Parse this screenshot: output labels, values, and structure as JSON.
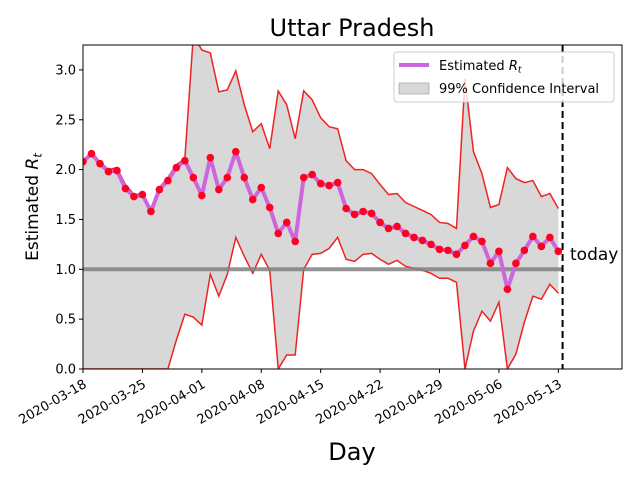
{
  "chart_data": {
    "type": "line",
    "title": "Uttar Pradesh",
    "xlabel": "Day",
    "ylabel": "Estimated $R_t$",
    "ylim": [
      0,
      3.25
    ],
    "x_tick_labels": [
      "2020-03-18",
      "2020-03-25",
      "2020-04-01",
      "2020-04-08",
      "2020-04-15",
      "2020-04-22",
      "2020-04-29",
      "2020-05-06",
      "2020-05-13"
    ],
    "y_ticks": [
      0.0,
      0.5,
      1.0,
      1.5,
      2.0,
      2.5,
      3.0
    ],
    "y_tick_labels": [
      "0.0",
      "0.5",
      "1.0",
      "1.5",
      "2.0",
      "2.5",
      "3.0"
    ],
    "reference_line": {
      "y": 1.0,
      "color": "#808080"
    },
    "today_label": "today",
    "today_day_index": 56.5,
    "legend": {
      "placement": "top-right",
      "estimate_label": "Estimated $R_t$",
      "ci_label": "99% Confidence Interval"
    },
    "colors": {
      "estimate_line": "#cc66dd",
      "points": "#ff0022",
      "ci_fill": "#d8d8d8",
      "ci_edge": "#ee2222",
      "today_line": "#000000"
    },
    "series": [
      {
        "name": "Estimated $R_t$",
        "day_index": [
          0,
          1,
          2,
          3,
          4,
          5,
          6,
          7,
          8,
          9,
          10,
          11,
          12,
          13,
          14,
          15,
          16,
          17,
          18,
          19,
          20,
          21,
          22,
          23,
          24,
          25,
          26,
          27,
          28,
          29,
          30,
          31,
          32,
          33,
          34,
          35,
          36,
          37,
          38,
          39,
          40,
          41,
          42,
          43,
          44,
          45,
          46,
          47,
          48,
          49,
          50,
          51,
          52,
          53,
          54,
          55,
          56
        ],
        "values": [
          2.08,
          2.16,
          2.06,
          1.98,
          1.99,
          1.81,
          1.73,
          1.75,
          1.58,
          1.8,
          1.89,
          2.02,
          2.09,
          1.92,
          1.74,
          2.12,
          1.8,
          1.92,
          2.18,
          1.92,
          1.7,
          1.82,
          1.62,
          1.36,
          1.47,
          1.28,
          1.92,
          1.95,
          1.86,
          1.84,
          1.87,
          1.61,
          1.55,
          1.58,
          1.56,
          1.47,
          1.41,
          1.43,
          1.36,
          1.32,
          1.29,
          1.25,
          1.2,
          1.19,
          1.15,
          1.24,
          1.33,
          1.28,
          1.06,
          1.18,
          0.8,
          1.06,
          1.19,
          1.33,
          1.23,
          1.32,
          1.18
        ]
      }
    ],
    "confidence_interval": {
      "upper": [
        2.1,
        2.16,
        2.08,
        2.0,
        2.02,
        1.85,
        1.75,
        1.76,
        1.6,
        1.82,
        1.92,
        2.05,
        2.11,
        3.35,
        3.2,
        3.17,
        2.78,
        2.8,
        2.99,
        2.65,
        2.38,
        2.46,
        2.21,
        2.79,
        2.65,
        2.31,
        2.79,
        2.7,
        2.52,
        2.43,
        2.41,
        2.09,
        2.0,
        2.0,
        1.96,
        1.85,
        1.75,
        1.76,
        1.67,
        1.63,
        1.59,
        1.55,
        1.47,
        1.46,
        1.41,
        2.91,
        2.18,
        1.96,
        1.62,
        1.65,
        2.02,
        1.91,
        1.87,
        1.89,
        1.73,
        1.76,
        1.61
      ],
      "lower": [
        0.0,
        0.0,
        0.0,
        0.0,
        0.0,
        0.0,
        0.0,
        0.0,
        0.0,
        0.0,
        0.0,
        0.29,
        0.55,
        0.52,
        0.44,
        0.95,
        0.73,
        0.95,
        1.32,
        1.13,
        0.96,
        1.15,
        0.99,
        0.0,
        0.14,
        0.14,
        1.0,
        1.15,
        1.16,
        1.21,
        1.32,
        1.1,
        1.08,
        1.15,
        1.16,
        1.1,
        1.05,
        1.09,
        1.03,
        1.01,
        0.99,
        0.96,
        0.91,
        0.91,
        0.87,
        0.0,
        0.38,
        0.58,
        0.48,
        0.67,
        0.0,
        0.15,
        0.47,
        0.73,
        0.7,
        0.85,
        0.76
      ]
    }
  }
}
